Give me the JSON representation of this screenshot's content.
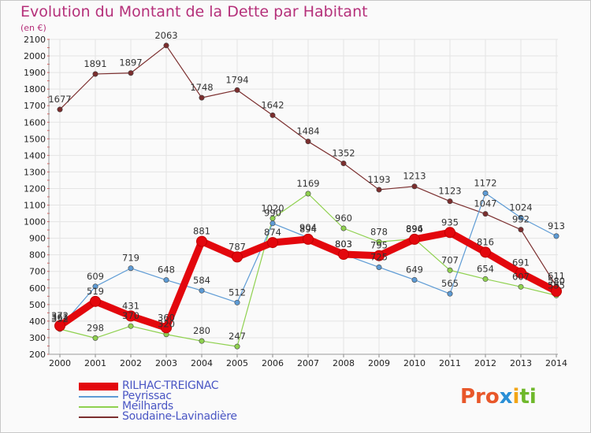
{
  "chart_data": {
    "type": "line",
    "title": "Evolution du Montant de la Dette par Habitant",
    "unit_label": "(en €)",
    "x": [
      "2000",
      "2001",
      "2002",
      "2003",
      "2004",
      "2005",
      "2006",
      "2007",
      "2008",
      "2009",
      "2010",
      "2011",
      "2012",
      "2013",
      "2014"
    ],
    "ylim": [
      200,
      2100
    ],
    "yticks": [
      200,
      300,
      400,
      500,
      600,
      700,
      800,
      900,
      1000,
      1100,
      1200,
      1300,
      1400,
      1500,
      1600,
      1700,
      1800,
      1900,
      2000,
      2100
    ],
    "series": [
      {
        "name": "RILHAC-TREIGNAC",
        "color": "#e3070d",
        "values": [
          372,
          519,
          431,
          360,
          881,
          787,
          874,
          894,
          803,
          795,
          894,
          935,
          816,
          691,
          580
        ],
        "labels": [
          "372",
          "519",
          "431",
          "360",
          "881",
          "787",
          "874",
          "894",
          "803",
          "795",
          "894",
          "935",
          "816",
          "691",
          "580"
        ]
      },
      {
        "name": "Peyrissac",
        "color": "#5d9bd5",
        "values": [
          361,
          609,
          719,
          648,
          584,
          512,
          990,
          904,
          803,
          725,
          649,
          565,
          1172,
          1024,
          913
        ],
        "labels": [
          "361",
          "609",
          "719",
          "648",
          "584",
          "512",
          "990",
          "904",
          "803",
          "725",
          "649",
          "565",
          "1172",
          "1024",
          "913"
        ]
      },
      {
        "name": "Meilhards",
        "color": "#8fd14f",
        "values": [
          352,
          298,
          370,
          320,
          280,
          247,
          1020,
          1169,
          960,
          878,
          896,
          707,
          654,
          607,
          555
        ],
        "labels": [
          "352",
          "298",
          "370",
          "320",
          "280",
          "247",
          "1020",
          "1169",
          "960",
          "878",
          "896",
          "707",
          "654",
          "607",
          "555"
        ]
      },
      {
        "name": "Soudaine-Lavinadière",
        "color": "#7b2e2e",
        "values": [
          1677,
          1891,
          1897,
          2063,
          1748,
          1794,
          1642,
          1484,
          1352,
          1193,
          1213,
          1123,
          1047,
          952,
          611
        ],
        "labels": [
          "1677",
          "1891",
          "1897",
          "2063",
          "1748",
          "1794",
          "1642",
          "1484",
          "1352",
          "1193",
          "1213",
          "1123",
          "1047",
          "952",
          "611"
        ]
      }
    ],
    "legend_position": "bottom-left"
  },
  "logo": {
    "part1": "Pro",
    "part2": "x",
    "part3": "i",
    "part4": "ti"
  }
}
